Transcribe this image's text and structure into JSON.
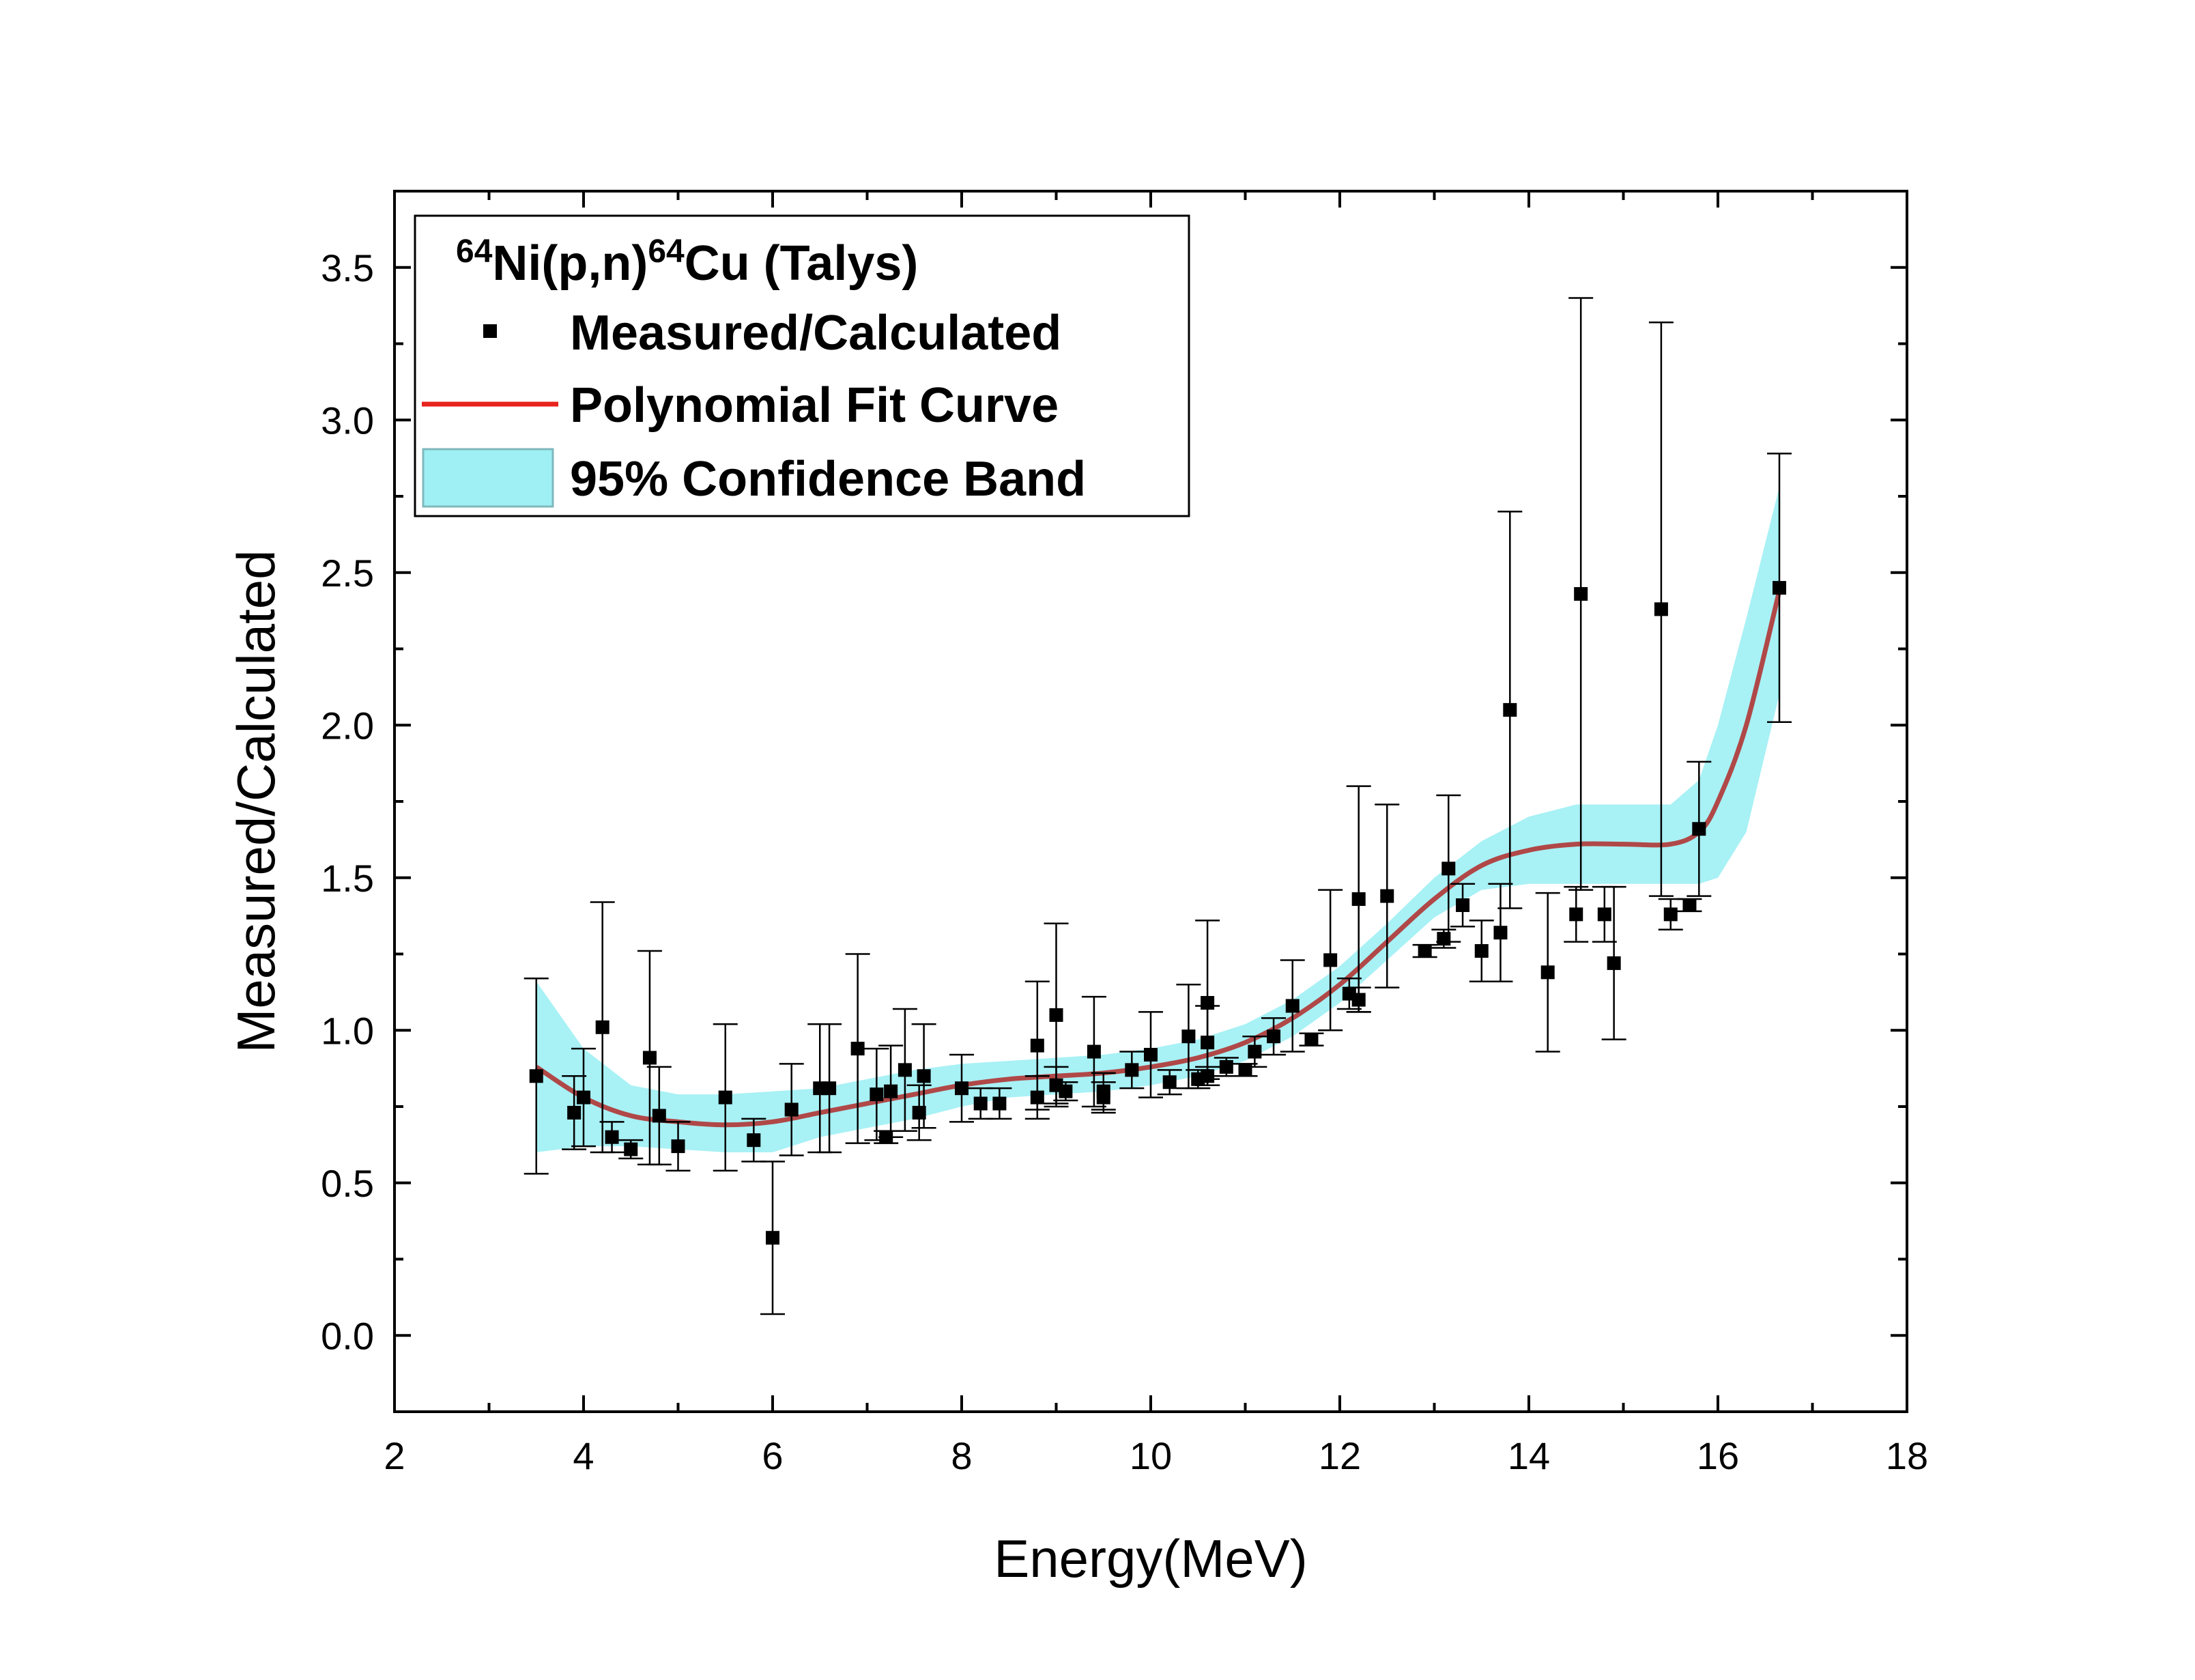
{
  "chart_data": {
    "type": "scatter",
    "title": "",
    "xlabel": "Energy(MeV)",
    "ylabel": "Measured/Calculated",
    "xlim": [
      2,
      18
    ],
    "ylim": [
      -0.25,
      3.75
    ],
    "xticks": [
      2,
      4,
      6,
      8,
      10,
      12,
      14,
      16,
      18
    ],
    "yticks": [
      0.0,
      0.5,
      1.0,
      1.5,
      2.0,
      2.5,
      3.0,
      3.5
    ],
    "x_tick_labels": [
      "2",
      "4",
      "6",
      "8",
      "10",
      "12",
      "14",
      "16",
      "18"
    ],
    "y_tick_labels": [
      "0.0",
      "0.5",
      "1.0",
      "1.5",
      "2.0",
      "2.5",
      "3.0",
      "3.5"
    ],
    "grid": false,
    "legend": {
      "position": "top-left",
      "title_main": "Ni(p,n)",
      "title_sup1": "64",
      "title_sup2": "64",
      "title_tail": "Cu (Talys)",
      "entries": [
        "Measured/Calculated",
        "Polynomial Fit Curve",
        "95% Confidence Band"
      ]
    },
    "colors": {
      "points": "#000000",
      "fit_curve": "#b04848",
      "fit_legend": "#e8221c",
      "band": "#9ef0f4",
      "band_edge": "#7fb8bc"
    },
    "series": [
      {
        "name": "Measured/Calculated",
        "x": [
          3.5,
          3.9,
          4.0,
          4.2,
          4.3,
          4.5,
          4.7,
          4.8,
          5.0,
          5.5,
          5.8,
          6.0,
          6.2,
          6.5,
          6.6,
          6.9,
          7.1,
          7.2,
          7.25,
          7.4,
          7.55,
          7.6,
          8.0,
          8.2,
          8.4,
          8.8,
          8.8,
          9.0,
          9.0,
          9.1,
          9.4,
          9.5,
          9.5,
          9.8,
          10.0,
          10.2,
          10.4,
          10.5,
          10.6,
          10.6,
          10.6,
          10.8,
          11.0,
          11.1,
          11.3,
          11.5,
          11.7,
          11.9,
          12.1,
          12.2,
          12.2,
          12.5,
          12.9,
          13.1,
          13.15,
          13.3,
          13.5,
          13.7,
          13.8,
          14.2,
          14.5,
          14.55,
          14.8,
          14.9,
          15.4,
          15.5,
          15.7,
          15.8,
          16.65
        ],
        "y": [
          0.85,
          0.73,
          0.78,
          1.01,
          0.65,
          0.61,
          0.91,
          0.72,
          0.62,
          0.78,
          0.64,
          0.32,
          0.74,
          0.81,
          0.81,
          0.94,
          0.79,
          0.65,
          0.8,
          0.87,
          0.73,
          0.85,
          0.81,
          0.76,
          0.76,
          0.78,
          0.95,
          0.82,
          1.05,
          0.8,
          0.93,
          0.78,
          0.8,
          0.87,
          0.92,
          0.83,
          0.98,
          0.84,
          0.85,
          1.09,
          0.96,
          0.88,
          0.87,
          0.93,
          0.98,
          1.08,
          0.97,
          1.23,
          1.12,
          1.1,
          1.43,
          1.44,
          1.26,
          1.3,
          1.53,
          1.41,
          1.26,
          1.32,
          2.05,
          1.19,
          1.38,
          2.43,
          1.38,
          1.22,
          2.38,
          1.38,
          1.41,
          1.66,
          2.45
        ],
        "yerr": [
          0.32,
          0.12,
          0.16,
          0.41,
          0.05,
          0.03,
          0.35,
          0.16,
          0.08,
          0.24,
          0.07,
          0.25,
          0.15,
          0.21,
          0.21,
          0.31,
          0.15,
          0.02,
          0.15,
          0.2,
          0.09,
          0.17,
          0.11,
          0.05,
          0.05,
          0.07,
          0.21,
          0.06,
          0.3,
          0.03,
          0.18,
          0.05,
          0.06,
          0.06,
          0.14,
          0.04,
          0.17,
          0.03,
          0.03,
          0.27,
          0.12,
          0.03,
          0.02,
          0.05,
          0.06,
          0.15,
          0.02,
          0.23,
          0.05,
          0.04,
          0.37,
          0.3,
          0.02,
          0.03,
          0.24,
          0.07,
          0.1,
          0.16,
          0.65,
          0.26,
          0.09,
          0.97,
          0.09,
          0.25,
          0.94,
          0.05,
          0.02,
          0.22,
          0.44
        ]
      },
      {
        "name": "Polynomial Fit Curve",
        "x": [
          3.5,
          4.0,
          4.5,
          5.0,
          5.5,
          6.0,
          6.5,
          7.0,
          7.5,
          8.0,
          8.5,
          9.0,
          9.5,
          10.0,
          10.5,
          11.0,
          11.5,
          12.0,
          12.5,
          13.0,
          13.5,
          14.0,
          14.5,
          15.0,
          15.5,
          15.8,
          16.0,
          16.3,
          16.65
        ],
        "y": [
          0.88,
          0.78,
          0.72,
          0.7,
          0.69,
          0.7,
          0.73,
          0.76,
          0.79,
          0.82,
          0.84,
          0.85,
          0.86,
          0.88,
          0.91,
          0.96,
          1.04,
          1.15,
          1.29,
          1.43,
          1.54,
          1.59,
          1.61,
          1.61,
          1.61,
          1.65,
          1.75,
          2.0,
          2.44
        ]
      },
      {
        "name": "95% Confidence Band",
        "x": [
          3.5,
          4.0,
          4.5,
          5.0,
          5.5,
          6.0,
          6.5,
          7.0,
          7.5,
          8.0,
          8.5,
          9.0,
          9.5,
          10.0,
          10.5,
          11.0,
          11.5,
          12.0,
          12.5,
          13.0,
          13.5,
          14.0,
          14.5,
          15.0,
          15.5,
          15.8,
          16.0,
          16.3,
          16.65
        ],
        "upper": [
          1.16,
          0.94,
          0.82,
          0.79,
          0.79,
          0.8,
          0.81,
          0.84,
          0.87,
          0.89,
          0.9,
          0.91,
          0.92,
          0.94,
          0.97,
          1.02,
          1.1,
          1.21,
          1.35,
          1.5,
          1.62,
          1.7,
          1.74,
          1.74,
          1.74,
          1.82,
          2.0,
          2.35,
          2.78
        ],
        "lower": [
          0.6,
          0.62,
          0.62,
          0.61,
          0.6,
          0.6,
          0.65,
          0.68,
          0.71,
          0.75,
          0.78,
          0.79,
          0.8,
          0.82,
          0.85,
          0.9,
          0.98,
          1.09,
          1.23,
          1.37,
          1.46,
          1.48,
          1.48,
          1.48,
          1.48,
          1.48,
          1.5,
          1.65,
          2.1
        ]
      }
    ]
  }
}
